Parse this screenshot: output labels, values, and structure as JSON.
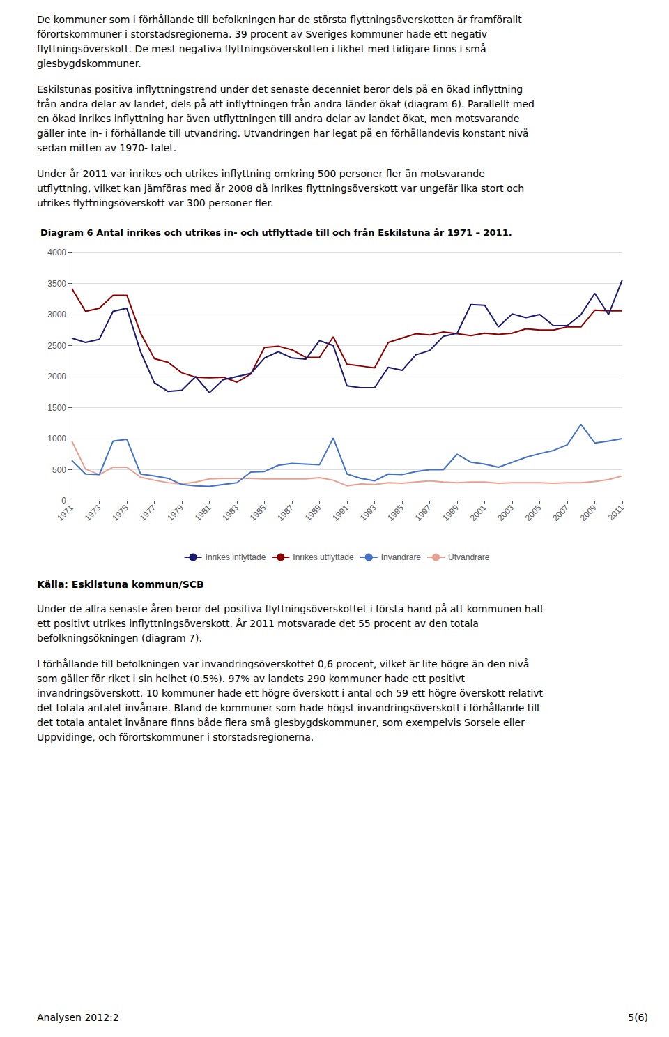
{
  "text_before": [
    [
      "De kommuner som i förhållande till befolkningen har de största flyttningsöverskotten är framförallt",
      "förortskommuner i storstadsregionerna. 39 procent av Sveriges kommuner hade ett negativ",
      "flyttningsöverskott. De mest negativa flyttningsöverskotten i likhet med tidigare finns i små",
      "glesbygdskommuner."
    ],
    [
      "Eskilstunas positiva inflyttningstrend under det senaste decenniet beror dels på en ökad inflyttning",
      "från andra delar av landet, dels på att inflyttningen från andra länder ökat (diagram 6). Parallellt med",
      "en ökad inrikes inflyttning har även utflyttningen till andra delar av landet ökat, men motsvarande",
      "gäller inte in- i förhållande till utvandring. Utvandringen har legat på en förhållandevis konstant nivå",
      "sedan mitten av 1970- talet."
    ],
    [
      "Under år 2011 var inrikes och utrikes inflyttning omkring 500 personer fler än motsvarande",
      "utflyttning, vilket kan jämföras med år 2008 då inrikes flyttningsöverskott var ungefär lika stort och",
      "utrikes flyttningsöverskott var 300 personer fler."
    ]
  ],
  "chart_data": {
    "type": "line",
    "title": "Diagram 6 Antal inrikes och utrikes in- och utflyttade till och från Eskilstuna år 1971 – 2011.",
    "x": [
      1971,
      1972,
      1973,
      1974,
      1975,
      1976,
      1977,
      1978,
      1979,
      1980,
      1981,
      1982,
      1983,
      1984,
      1985,
      1986,
      1987,
      1988,
      1989,
      1990,
      1991,
      1992,
      1993,
      1994,
      1995,
      1996,
      1997,
      1998,
      1999,
      2000,
      2001,
      2002,
      2003,
      2004,
      2005,
      2006,
      2007,
      2008,
      2009,
      2010,
      2011
    ],
    "series": [
      {
        "name": "Inrikes inflyttade",
        "color": "#1a1a6e",
        "values": [
          2620,
          2550,
          2600,
          3050,
          3100,
          2400,
          1900,
          1760,
          1780,
          2000,
          1740,
          1950,
          2000,
          2050,
          2300,
          2400,
          2300,
          2280,
          2580,
          2500,
          1850,
          1820,
          1820,
          2150,
          2100,
          2350,
          2420,
          2650,
          2700,
          3160,
          3150,
          2800,
          3010,
          2950,
          3000,
          2820,
          2820,
          3000,
          3340,
          3000,
          3560
        ]
      },
      {
        "name": "Inrikes utflyttade",
        "color": "#8b0000",
        "values": [
          3420,
          3050,
          3100,
          3310,
          3310,
          2700,
          2290,
          2230,
          2060,
          1990,
          1980,
          1990,
          1910,
          2040,
          2470,
          2490,
          2430,
          2310,
          2310,
          2640,
          2200,
          2170,
          2140,
          2550,
          2620,
          2690,
          2670,
          2720,
          2690,
          2660,
          2700,
          2680,
          2700,
          2770,
          2750,
          2750,
          2800,
          2800,
          3070,
          3060,
          3060
        ]
      },
      {
        "name": "Invandrare",
        "color": "#4472c4",
        "values": [
          650,
          430,
          420,
          960,
          990,
          430,
          400,
          360,
          260,
          240,
          230,
          260,
          290,
          460,
          470,
          570,
          600,
          590,
          580,
          1010,
          430,
          360,
          320,
          430,
          420,
          470,
          500,
          500,
          750,
          620,
          590,
          540,
          620,
          700,
          760,
          810,
          900,
          1230,
          930,
          960,
          1000
        ]
      },
      {
        "name": "Utvandrare",
        "color": "#e8a090",
        "values": [
          960,
          510,
          420,
          540,
          540,
          380,
          330,
          290,
          270,
          300,
          350,
          360,
          360,
          360,
          350,
          350,
          350,
          350,
          370,
          330,
          240,
          270,
          260,
          290,
          280,
          300,
          320,
          300,
          290,
          300,
          300,
          280,
          290,
          290,
          290,
          280,
          290,
          290,
          310,
          340,
          400
        ]
      }
    ],
    "xlim": [
      1971,
      2011
    ],
    "xticks": [
      1971,
      1973,
      1975,
      1977,
      1979,
      1981,
      1983,
      1985,
      1987,
      1989,
      1991,
      1993,
      1995,
      1997,
      1999,
      2001,
      2003,
      2005,
      2007,
      2009,
      2011
    ],
    "ylim": [
      0,
      4000
    ],
    "yticks": [
      0,
      500,
      1000,
      1500,
      2000,
      2500,
      3000,
      3500,
      4000
    ],
    "grid": true,
    "legend": "bottom"
  },
  "source": "Källa: Eskilstuna kommun/SCB",
  "text_after": [
    [
      "Under de allra senaste åren beror det positiva flyttningsöverskottet i första hand på att kommunen haft",
      "ett positivt utrikes inflyttningsöverskott. År 2011 motsvarade det 55 procent av den totala",
      "befolkningsökningen (diagram 7)."
    ],
    [
      "I förhållande till befolkningen var invandringsöverskottet 0,6 procent, vilket är lite högre än den nivå",
      "som gäller för riket i sin helhet (0.5%). 97% av landets 290 kommuner hade ett positivt",
      "invandringsöverskott. 10 kommuner hade ett högre överskott i antal och 59 ett högre överskott relativt",
      "det totala antalet invånare. Bland de kommuner som hade högst invandringsöverskott i förhållande till",
      "det totala antalet invånare finns både flera små glesbygdskommuner, som exempelvis Sorsele eller",
      "Uppvidinge, och förortskommuner i storstadsregionerna."
    ]
  ],
  "footer_left": "Analysen 2012:2",
  "footer_right": "5(6)"
}
